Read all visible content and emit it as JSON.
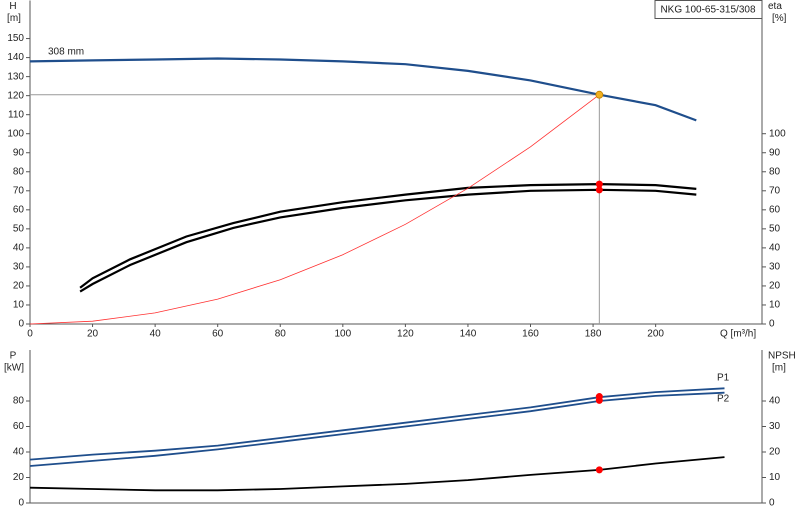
{
  "chart_data": [
    {
      "type": "line",
      "title": "NKG 100-65-315/308",
      "xlabel": "Q [m³/h]",
      "ylabel": "H",
      "ylabel_unit": "[m]",
      "y2label": "eta",
      "y2label_unit": "[%]",
      "xlim": [
        0,
        234
      ],
      "xticks": [
        0,
        20,
        40,
        60,
        80,
        100,
        120,
        140,
        160,
        180,
        200
      ],
      "ylim": [
        0,
        170
      ],
      "yticks": [
        0,
        10,
        20,
        30,
        40,
        50,
        60,
        70,
        80,
        90,
        100,
        110,
        120,
        130,
        140,
        150
      ],
      "y2lim": [
        0,
        170
      ],
      "y2ticks": [
        0,
        10,
        20,
        30,
        40,
        50,
        60,
        70,
        80,
        90,
        100
      ],
      "series": [
        {
          "name": "308 mm",
          "color": "#1f4e8c",
          "x": [
            0,
            20,
            40,
            60,
            80,
            100,
            120,
            140,
            160,
            182,
            200,
            213
          ],
          "values": [
            138,
            138.5,
            139,
            139.5,
            139,
            138,
            136.5,
            133,
            128,
            120.5,
            115,
            107
          ]
        },
        {
          "color": "#000000",
          "axis": "y2",
          "x": [
            16,
            20,
            32,
            50,
            65,
            80,
            100,
            120,
            140,
            160,
            182,
            200,
            213
          ],
          "values": [
            19,
            24,
            34,
            46,
            53,
            59,
            64,
            68,
            71.5,
            73,
            73.5,
            73,
            71
          ]
        },
        {
          "color": "#000000",
          "axis": "y2",
          "x": [
            16,
            20,
            32,
            50,
            65,
            80,
            100,
            120,
            140,
            160,
            182,
            200,
            213
          ],
          "values": [
            17,
            21,
            31,
            43,
            50.5,
            56,
            61,
            65,
            68,
            70,
            70.5,
            70,
            68
          ]
        },
        {
          "color": "#ff3030",
          "x": [
            0,
            20,
            40,
            60,
            80,
            100,
            120,
            140,
            160,
            182
          ],
          "values": [
            0,
            1.46,
            5.82,
            13.1,
            23.3,
            36.4,
            52.4,
            71.3,
            93.1,
            120.5
          ]
        }
      ],
      "points": [
        {
          "x": 182,
          "y": 120.5,
          "color": "#f0b020"
        },
        {
          "x": 182,
          "y": 73.5,
          "axis": "y2",
          "color": "#ff0000"
        },
        {
          "x": 182,
          "y": 70.5,
          "axis": "y2",
          "color": "#ff0000"
        }
      ]
    },
    {
      "type": "line",
      "ylabel": "P",
      "ylabel_unit": "[kW]",
      "y2label": "NPSH",
      "y2label_unit": "[m]",
      "xlim": [
        0,
        234
      ],
      "ylim": [
        0,
        120
      ],
      "yticks": [
        0,
        20,
        40,
        60,
        80
      ],
      "y2lim": [
        0,
        60
      ],
      "y2ticks": [
        0,
        10,
        20,
        30,
        40
      ],
      "series": [
        {
          "name": "P1",
          "color": "#1f4e8c",
          "x": [
            0,
            20,
            40,
            60,
            80,
            100,
            120,
            140,
            160,
            182,
            200,
            222
          ],
          "values": [
            34,
            38,
            41,
            45,
            51,
            57,
            63,
            69,
            75,
            83,
            87,
            90
          ]
        },
        {
          "name": "P2",
          "color": "#1f4e8c",
          "x": [
            0,
            20,
            40,
            60,
            80,
            100,
            120,
            140,
            160,
            182,
            200,
            222
          ],
          "values": [
            29,
            33,
            37,
            42,
            48,
            54,
            60,
            66,
            72,
            80,
            84,
            86.5
          ]
        },
        {
          "color": "#000000",
          "axis": "y2",
          "x": [
            0,
            20,
            40,
            60,
            80,
            100,
            120,
            140,
            160,
            182,
            200,
            222
          ],
          "values": [
            6,
            5.5,
            5,
            5,
            5.5,
            6.5,
            7.5,
            9,
            11,
            13,
            15.5,
            18
          ]
        }
      ],
      "points": [
        {
          "x": 182,
          "y": 83.5,
          "color": "#ff0000"
        },
        {
          "x": 182,
          "y": 80.5,
          "color": "#ff0000"
        },
        {
          "x": 182,
          "y": 13,
          "axis": "y2",
          "color": "#ff0000"
        }
      ]
    }
  ]
}
